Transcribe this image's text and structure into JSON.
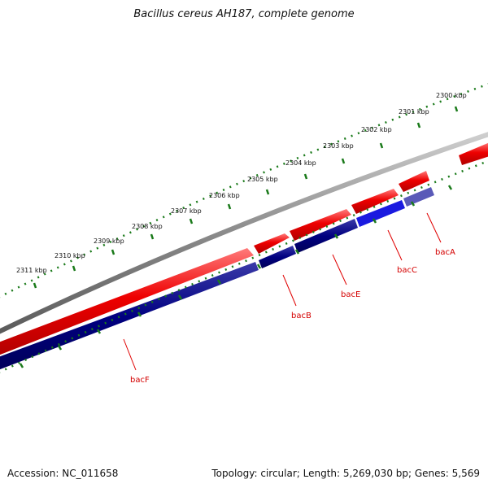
{
  "title": "Bacillus cereus AH187, complete genome",
  "footer": {
    "accession": "Accession: NC_011658",
    "summary": "Topology: circular; Length: 5,269,030 bp; Genes: 5,569"
  },
  "ticks": [
    {
      "label": "2300 kbp"
    },
    {
      "label": "2301 kbp"
    },
    {
      "label": "2302 kbp"
    },
    {
      "label": "2303 kbp"
    },
    {
      "label": "2304 kbp"
    },
    {
      "label": "2305 kbp"
    },
    {
      "label": "2306 kbp"
    },
    {
      "label": "2307 kbp"
    },
    {
      "label": "2308 kbp"
    },
    {
      "label": "2309 kbp"
    },
    {
      "label": "2310 kbp"
    },
    {
      "label": "2311 kbp"
    }
  ],
  "genes": [
    {
      "label": "bacA"
    },
    {
      "label": "bacC"
    },
    {
      "label": "bacE"
    },
    {
      "label": "bacB"
    },
    {
      "label": "bacF"
    }
  ],
  "colors": {
    "forward": "#ee0000",
    "reverse": "#000080",
    "highlight": "#1010ee",
    "backbone": "#8a8a8a",
    "ticks": "#1a7a1a",
    "label": "#d40000"
  }
}
